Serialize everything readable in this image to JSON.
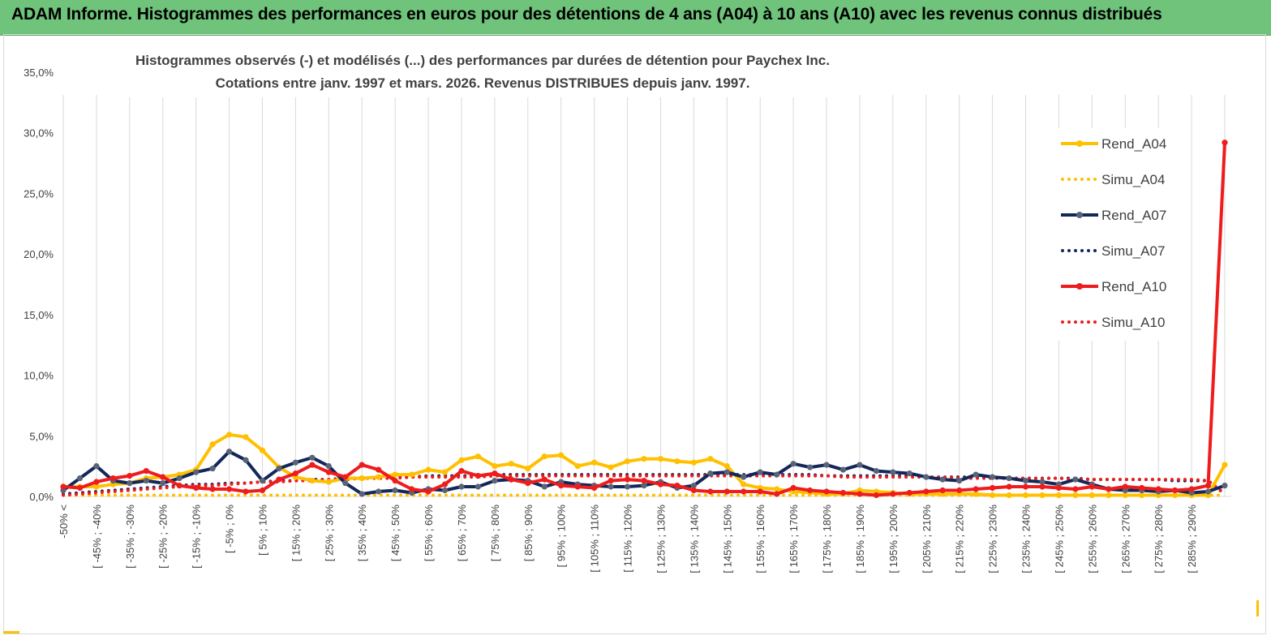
{
  "header": {
    "title": "ADAM Informe. Histogrammes des performances en euros pour des détentions de 4 ans (A04) à 10 ans (A10) avec les revenus connus distribués"
  },
  "chart_data": {
    "type": "line",
    "title": "Histogrammes observés (-) et modélisés (...) des performances par durées de détention pour Paychex Inc.",
    "subtitle": "Cotations entre janv. 1997 et mars. 2026. Revenus DISTRIBUES depuis janv. 1997.",
    "ylim": [
      0,
      35
    ],
    "yticks": [
      "0,0%",
      "5,0%",
      "10,0%",
      "15,0%",
      "20,0%",
      "25,0%",
      "30,0%",
      "35,0%"
    ],
    "xtick_labels": [
      "-50% <",
      "[ -45% ; -40%",
      "[ -35% ; -30%",
      "[ -25% ; -20%",
      "[ -15% ; -10%",
      "[ -5% ; 0%",
      "[ 5% ; 10%",
      "[ 15% ; 20%",
      "[ 25% ; 30%",
      "[ 35% ; 40%",
      "[ 45% ; 50%",
      "[ 55% ; 60%",
      "[ 65% ; 70%",
      "[ 75% ; 80%",
      "[ 85% ; 90%",
      "[ 95% ; 100%",
      "[ 105% ; 110%",
      "[ 115% ; 120%",
      "[ 125% ; 130%",
      "[ 135% ; 140%",
      "[ 145% ; 150%",
      "[ 155% ; 160%",
      "[ 165% ; 170%",
      "[ 175% ; 180%",
      "[ 185% ; 190%",
      "[ 195% ; 200%",
      "[ 205% ; 210%",
      "[ 215% ; 220%",
      "[ 225% ; 230%",
      "[ 235% ; 240%",
      "[ 245% ; 250%",
      "[ 255% ; 260%",
      "[ 265% ; 270%",
      "[ 275% ; 280%",
      "[ 285% ; 290%"
    ],
    "category_count": 71,
    "legend_position": "right",
    "grid": "vertical",
    "series": [
      {
        "name": "Rend_A04",
        "color": "#ffc000",
        "style": "solid",
        "values": [
          0.8,
          0.8,
          0.8,
          1.0,
          1.1,
          1.5,
          1.6,
          1.8,
          2.2,
          4.3,
          5.1,
          4.9,
          3.8,
          2.4,
          1.6,
          1.3,
          1.2,
          1.5,
          1.5,
          1.6,
          1.8,
          1.8,
          2.2,
          2.0,
          3.0,
          3.3,
          2.5,
          2.7,
          2.3,
          3.3,
          3.4,
          2.5,
          2.8,
          2.4,
          2.9,
          3.1,
          3.1,
          2.9,
          2.8,
          3.1,
          2.5,
          1.0,
          0.7,
          0.6,
          0.4,
          0.3,
          0.2,
          0.2,
          0.5,
          0.4,
          0.3,
          0.2,
          0.2,
          0.2,
          0.2,
          0.2,
          0.1,
          0.1,
          0.1,
          0.1,
          0.1,
          0.1,
          0.1,
          0.1,
          0.1,
          0.1,
          0.1,
          0.1,
          0.1,
          0.1,
          2.6
        ]
      },
      {
        "name": "Simu_A04",
        "color": "#ffc000",
        "style": "dotted",
        "values": [
          0.1,
          0.1,
          0.1,
          0.1,
          0.1,
          0.1,
          0.1,
          0.1,
          0.1,
          0.1,
          0.1,
          0.1,
          0.1,
          0.1,
          0.1,
          0.1,
          0.1,
          0.1,
          0.1,
          0.1,
          0.1,
          0.1,
          0.1,
          0.1,
          0.1,
          0.1,
          0.1,
          0.1,
          0.1,
          0.1,
          0.1,
          0.1,
          0.1,
          0.1,
          0.1,
          0.1,
          0.1,
          0.1,
          0.1,
          0.1,
          0.1,
          0.1,
          0.1,
          0.1,
          0.1,
          0.1,
          0.1,
          0.1,
          0.1,
          0.1,
          0.1,
          0.1,
          0.1,
          0.1,
          0.1,
          0.1,
          0.1,
          0.1,
          0.1,
          0.1,
          0.1,
          0.1,
          0.1,
          0.1,
          0.1,
          0.1,
          0.1,
          0.1,
          0.1,
          0.1,
          0.1
        ]
      },
      {
        "name": "Rend_A07",
        "color": "#12275a",
        "style": "solid",
        "values": [
          0.5,
          1.5,
          2.5,
          1.3,
          1.1,
          1.3,
          1.1,
          1.5,
          2.0,
          2.3,
          3.7,
          3.0,
          1.3,
          2.3,
          2.8,
          3.2,
          2.5,
          1.1,
          0.2,
          0.4,
          0.5,
          0.3,
          0.6,
          0.5,
          0.8,
          0.8,
          1.3,
          1.4,
          1.3,
          0.8,
          1.2,
          1.0,
          0.9,
          0.8,
          0.8,
          0.9,
          1.2,
          0.7,
          0.9,
          1.9,
          2.0,
          1.6,
          2.0,
          1.8,
          2.7,
          2.4,
          2.6,
          2.2,
          2.6,
          2.1,
          2.0,
          1.9,
          1.6,
          1.4,
          1.3,
          1.8,
          1.6,
          1.5,
          1.3,
          1.2,
          1.0,
          1.4,
          1.0,
          0.6,
          0.5,
          0.5,
          0.4,
          0.5,
          0.3,
          0.4,
          0.9
        ]
      },
      {
        "name": "Simu_A07",
        "color": "#12275a",
        "style": "dotted",
        "values": [
          0.2,
          0.3,
          0.4,
          0.5,
          0.6,
          0.7,
          0.8,
          0.9,
          1.0,
          1.0,
          1.1,
          1.1,
          1.2,
          1.3,
          1.3,
          1.4,
          1.4,
          1.5,
          1.5,
          1.6,
          1.6,
          1.6,
          1.7,
          1.7,
          1.7,
          1.7,
          1.8,
          1.8,
          1.8,
          1.8,
          1.8,
          1.8,
          1.8,
          1.8,
          1.8,
          1.8,
          1.8,
          1.8,
          1.8,
          1.8,
          1.8,
          1.8,
          1.8,
          1.8,
          1.8,
          1.8,
          1.7,
          1.7,
          1.7,
          1.7,
          1.7,
          1.7,
          1.6,
          1.6,
          1.6,
          1.6,
          1.6,
          1.5,
          1.5,
          1.5,
          1.5,
          1.5,
          1.4,
          1.4,
          1.4,
          1.4,
          1.4,
          1.3,
          1.3,
          1.3,
          0.2
        ]
      },
      {
        "name": "Rend_A10",
        "color": "#ee1c1c",
        "style": "solid",
        "values": [
          0.8,
          0.7,
          1.2,
          1.5,
          1.7,
          2.1,
          1.6,
          0.9,
          0.7,
          0.6,
          0.6,
          0.4,
          0.5,
          1.4,
          1.9,
          2.6,
          2.0,
          1.6,
          2.6,
          2.2,
          1.3,
          0.6,
          0.4,
          1.0,
          2.1,
          1.7,
          1.9,
          1.4,
          1.1,
          1.4,
          0.9,
          0.8,
          0.7,
          1.3,
          1.4,
          1.3,
          1.0,
          0.9,
          0.5,
          0.4,
          0.4,
          0.4,
          0.4,
          0.2,
          0.7,
          0.5,
          0.4,
          0.3,
          0.2,
          0.1,
          0.2,
          0.3,
          0.4,
          0.5,
          0.5,
          0.6,
          0.7,
          0.8,
          0.8,
          0.8,
          0.7,
          0.6,
          0.8,
          0.6,
          0.8,
          0.7,
          0.6,
          0.5,
          0.6,
          0.9,
          29.2
        ]
      },
      {
        "name": "Simu_A10",
        "color": "#ee1c1c",
        "style": "dotted",
        "values": [
          0.1,
          0.2,
          0.3,
          0.4,
          0.5,
          0.6,
          0.7,
          0.8,
          0.9,
          0.9,
          1.0,
          1.1,
          1.2,
          1.2,
          1.3,
          1.3,
          1.4,
          1.4,
          1.5,
          1.5,
          1.5,
          1.6,
          1.6,
          1.6,
          1.6,
          1.6,
          1.7,
          1.7,
          1.7,
          1.7,
          1.7,
          1.7,
          1.7,
          1.7,
          1.7,
          1.7,
          1.7,
          1.7,
          1.7,
          1.7,
          1.7,
          1.7,
          1.7,
          1.7,
          1.7,
          1.7,
          1.7,
          1.6,
          1.6,
          1.6,
          1.6,
          1.6,
          1.6,
          1.6,
          1.5,
          1.5,
          1.5,
          1.5,
          1.5,
          1.5,
          1.5,
          1.4,
          1.4,
          1.4,
          1.4,
          1.4,
          1.4,
          1.4,
          1.4,
          1.3,
          0.2
        ]
      }
    ]
  }
}
